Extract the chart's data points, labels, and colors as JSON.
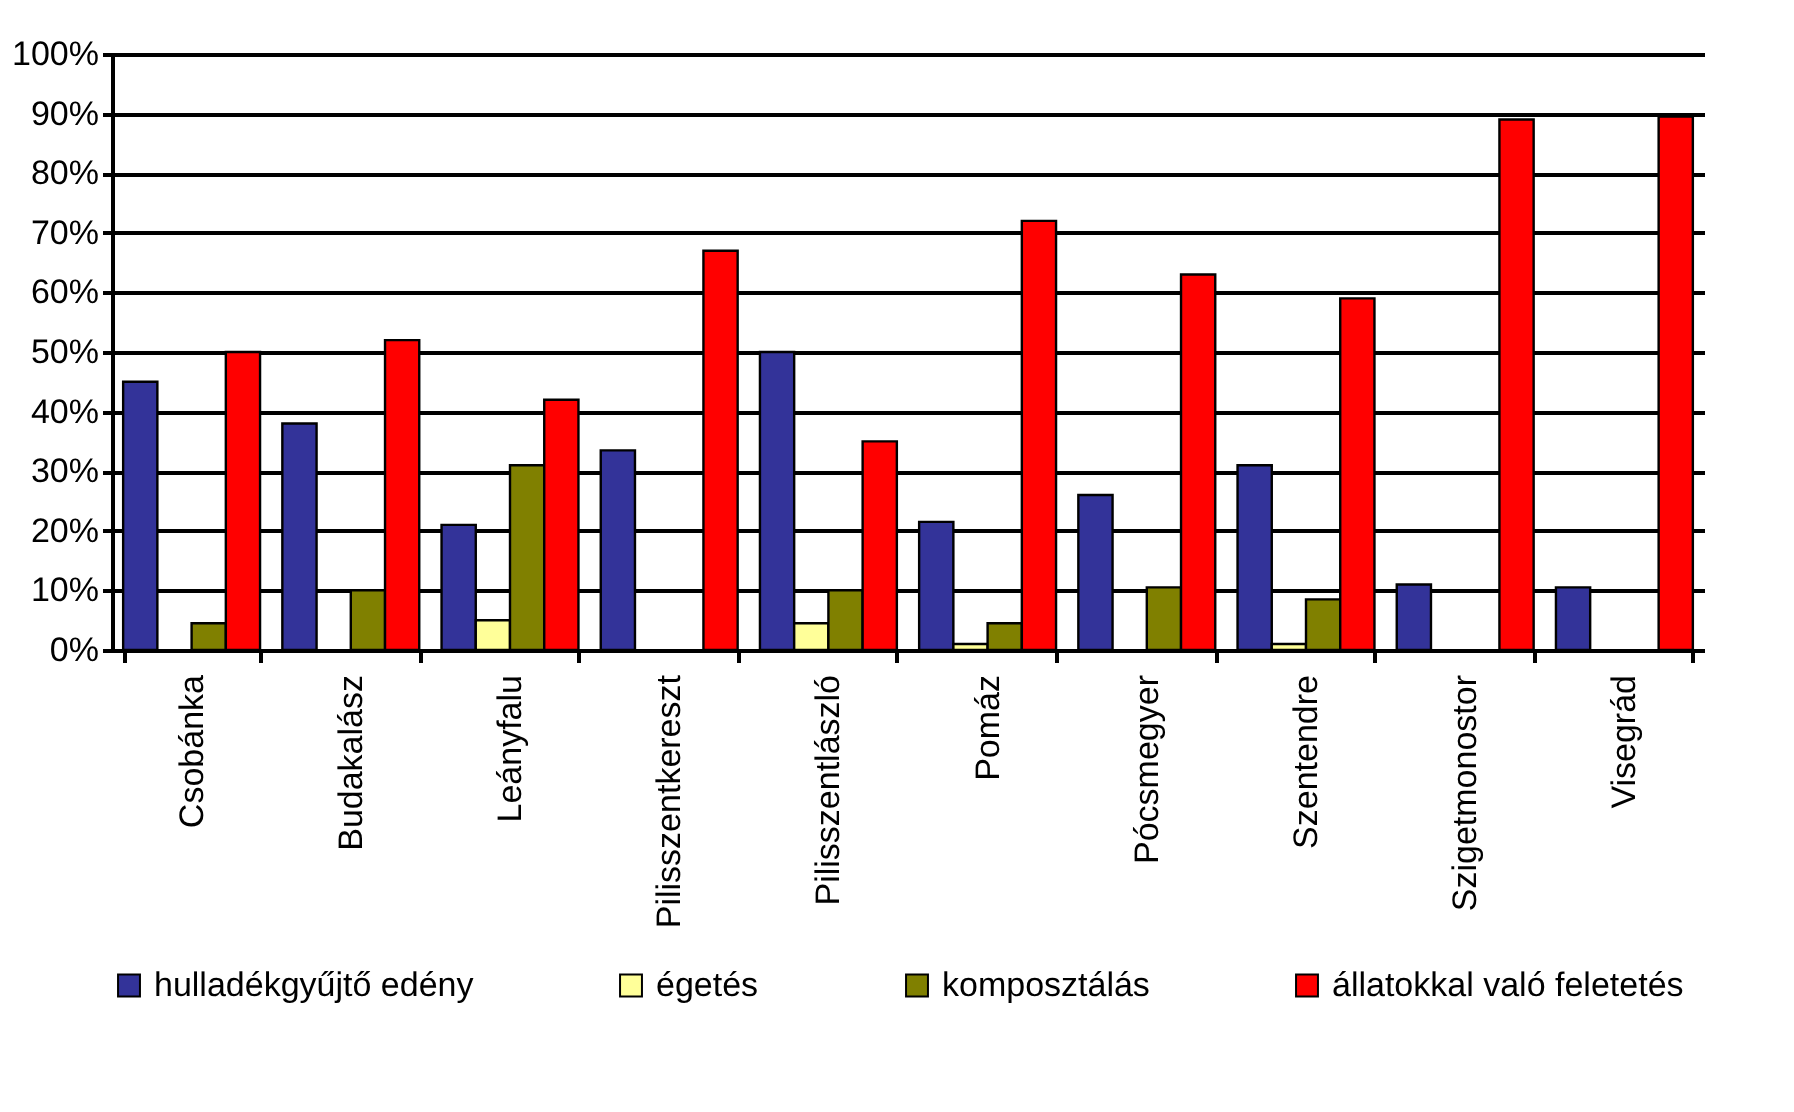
{
  "chart_data": {
    "type": "bar",
    "categories": [
      "Csobánka",
      "Budakalász",
      "Leányfalu",
      "Pilisszentkereszt",
      "Pilisszentlászló",
      "Pomáz",
      "Pócsmegyer",
      "Szentendre",
      "Szigetmonostor",
      "Visegrád"
    ],
    "series": [
      {
        "name": "hulladékgyűjtő edény",
        "color": "#333399",
        "values": [
          45,
          38,
          21,
          33.5,
          50,
          21.5,
          26,
          31,
          11,
          10.5
        ]
      },
      {
        "name": "égetés",
        "color": "#ffff99",
        "values": [
          null,
          null,
          5,
          null,
          4.5,
          1,
          null,
          1,
          null,
          null
        ]
      },
      {
        "name": "komposztálás",
        "color": "#808000",
        "values": [
          4.5,
          10,
          31,
          null,
          10,
          4.5,
          10.5,
          8.5,
          null,
          null
        ]
      },
      {
        "name": "állatokkal való feletetés",
        "color": "#ff0000",
        "values": [
          50,
          52,
          42,
          67,
          35,
          72,
          63,
          59,
          89,
          89.5
        ]
      }
    ],
    "ylim": [
      0,
      100
    ],
    "yticks": [
      {
        "value": 0,
        "label": "0%"
      },
      {
        "value": 10,
        "label": "10%"
      },
      {
        "value": 20,
        "label": "20%"
      },
      {
        "value": 30,
        "label": "30%"
      },
      {
        "value": 40,
        "label": "40%"
      },
      {
        "value": 50,
        "label": "50%"
      },
      {
        "value": 60,
        "label": "60%"
      },
      {
        "value": 70,
        "label": "70%"
      },
      {
        "value": 80,
        "label": "80%"
      },
      {
        "value": 90,
        "label": "90%"
      },
      {
        "value": 100,
        "label": "100%"
      }
    ],
    "grid": "y",
    "legend": "bottom"
  }
}
